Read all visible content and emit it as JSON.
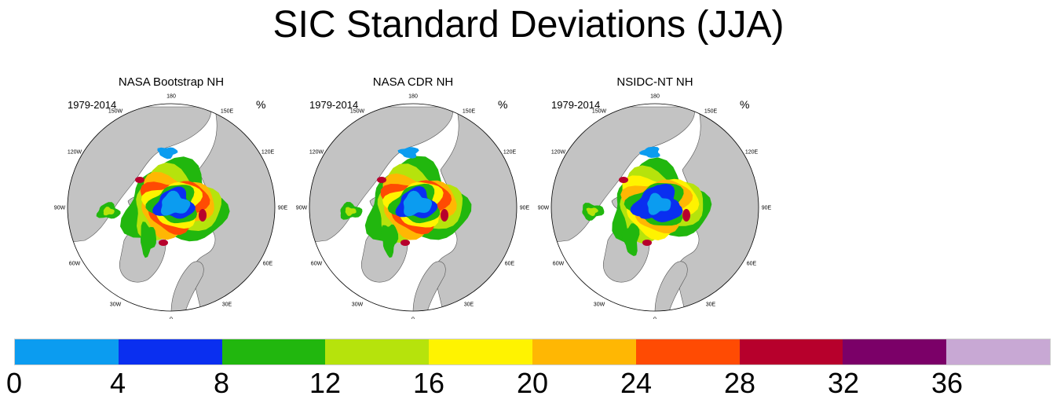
{
  "title": "SIC Standard Deviations (JJA)",
  "panels": [
    {
      "title": "NASA Bootstrap NH",
      "period": "1979-2014",
      "unit": "%",
      "variant": "a"
    },
    {
      "title": "NASA CDR NH",
      "period": "1979-2014",
      "unit": "%",
      "variant": "a"
    },
    {
      "title": "NSIDC-NT NH",
      "period": "1979-2014",
      "unit": "%",
      "variant": "b"
    }
  ],
  "longitude_labels": [
    "180",
    "150E",
    "120E",
    "90E",
    "60E",
    "30E",
    "0",
    "30W",
    "60W",
    "90W",
    "120W",
    "150W"
  ],
  "colorbar": {
    "colors": [
      "#0b9cf0",
      "#0a2ff0",
      "#21b70e",
      "#b6e30c",
      "#fff300",
      "#ffb703",
      "#ff4b03",
      "#b7002c",
      "#7b0068",
      "#c8a8d4"
    ],
    "tick_labels": [
      "0",
      "4",
      "8",
      "12",
      "16",
      "20",
      "24",
      "28",
      "32",
      "36"
    ]
  },
  "land_color": "#c3c3c3",
  "ocean_color": "#ffffff"
}
